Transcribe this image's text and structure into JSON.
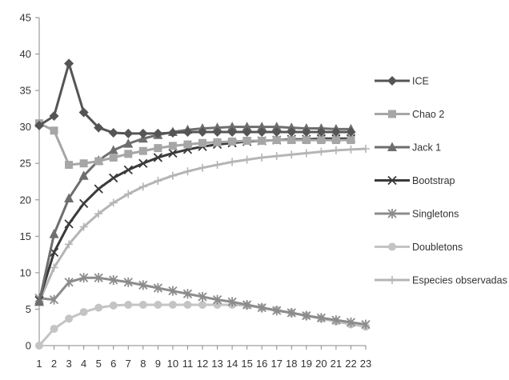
{
  "chart_data": {
    "type": "line",
    "title": "",
    "xlabel": "",
    "ylabel": "",
    "x": [
      1,
      2,
      3,
      4,
      5,
      6,
      7,
      8,
      9,
      10,
      11,
      12,
      13,
      14,
      15,
      16,
      17,
      18,
      19,
      20,
      21,
      22,
      23
    ],
    "ylim": [
      0,
      45
    ],
    "yticks": [
      0,
      5,
      10,
      15,
      20,
      25,
      30,
      35,
      40,
      45
    ],
    "grid": false,
    "legend_position": "right",
    "series": [
      {
        "name": "ICE",
        "marker": "diamond",
        "color": "#555555",
        "values": [
          30.2,
          31.5,
          38.7,
          32.0,
          29.9,
          29.2,
          29.1,
          29.1,
          29.1,
          29.2,
          29.3,
          29.3,
          29.3,
          29.3,
          29.3,
          29.3,
          29.3,
          29.3,
          29.3,
          29.3,
          29.3,
          29.3,
          null
        ]
      },
      {
        "name": "Chao 2",
        "marker": "square",
        "color": "#a6a6a6",
        "values": [
          30.5,
          29.5,
          24.8,
          25.0,
          25.3,
          25.8,
          26.3,
          26.7,
          27.1,
          27.4,
          27.6,
          27.8,
          27.9,
          28.0,
          28.1,
          28.1,
          28.2,
          28.2,
          28.2,
          28.2,
          28.2,
          28.2,
          null
        ]
      },
      {
        "name": "Jack 1",
        "marker": "triangle",
        "color": "#6e6e6e",
        "values": [
          6.0,
          15.3,
          20.2,
          23.3,
          25.4,
          26.8,
          27.7,
          28.4,
          28.9,
          29.3,
          29.6,
          29.8,
          29.9,
          30.0,
          30.0,
          30.0,
          30.0,
          29.9,
          29.8,
          29.8,
          29.7,
          29.7,
          null
        ]
      },
      {
        "name": "Bootstrap",
        "marker": "x",
        "color": "#3a3a3a",
        "values": [
          6.2,
          12.8,
          16.7,
          19.5,
          21.5,
          23.0,
          24.1,
          25.0,
          25.8,
          26.4,
          26.9,
          27.3,
          27.6,
          27.8,
          28.0,
          28.1,
          28.2,
          28.3,
          28.3,
          28.4,
          28.4,
          28.4,
          null
        ]
      },
      {
        "name": "Singletons",
        "marker": "star",
        "color": "#8c8c8c",
        "values": [
          6.5,
          6.3,
          8.7,
          9.3,
          9.3,
          9.0,
          8.7,
          8.3,
          7.9,
          7.5,
          7.1,
          6.7,
          6.3,
          6.0,
          5.6,
          5.2,
          4.8,
          4.5,
          4.1,
          3.8,
          3.5,
          3.2,
          2.9
        ]
      },
      {
        "name": "Doubletons",
        "marker": "circle",
        "color": "#c4c4c4",
        "values": [
          0.0,
          2.3,
          3.7,
          4.6,
          5.2,
          5.5,
          5.6,
          5.6,
          5.6,
          5.6,
          5.6,
          5.6,
          5.6,
          5.6,
          5.5,
          5.2,
          4.9,
          4.5,
          4.1,
          3.7,
          3.3,
          2.9,
          2.6
        ]
      },
      {
        "name": "Especies observadas",
        "marker": "plus",
        "color": "#b5b5b5",
        "values": [
          6.0,
          10.7,
          13.9,
          16.3,
          18.1,
          19.6,
          20.8,
          21.8,
          22.6,
          23.3,
          23.9,
          24.4,
          24.8,
          25.2,
          25.5,
          25.8,
          26.0,
          26.2,
          26.4,
          26.6,
          26.8,
          26.9,
          27.0
        ]
      }
    ]
  }
}
